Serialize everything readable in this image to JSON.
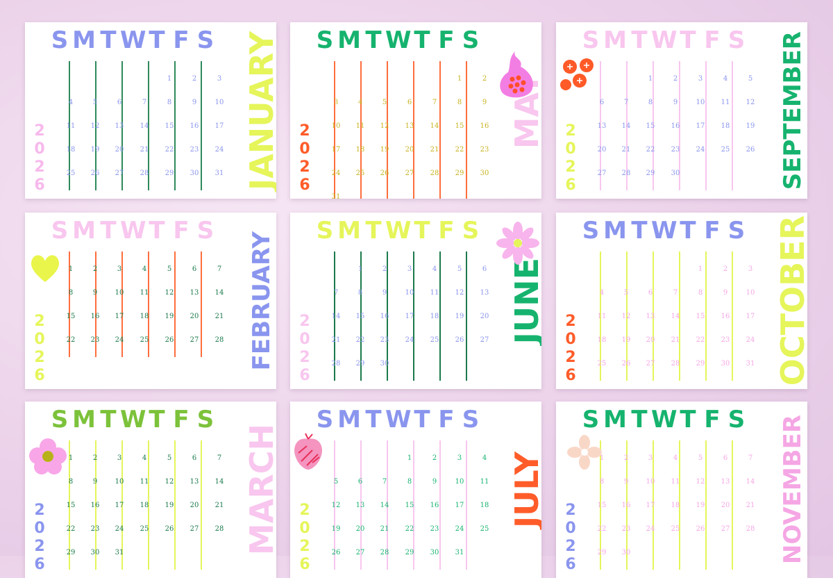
{
  "weekday_header": [
    "S",
    "M",
    "T",
    "W",
    "T",
    "F",
    "S"
  ],
  "cards": [
    {
      "id": "jan",
      "month": "JANUARY",
      "year": "2026",
      "colors": {
        "days": "#8a95ee",
        "lines": "#2e8a5a",
        "nums": "#8a95ee",
        "month": "#e5f55a",
        "year": "#f7b9ec"
      },
      "start_col": 4,
      "month_size": "large",
      "rows": [
        [
          "",
          "",
          "",
          "",
          "1",
          "2",
          "3"
        ],
        [
          "4",
          "5",
          "6",
          "7",
          "8",
          "9",
          "10"
        ],
        [
          "11",
          "12",
          "13",
          "14",
          "15",
          "16",
          "17"
        ],
        [
          "18",
          "19",
          "20",
          "21",
          "22",
          "23",
          "24"
        ],
        [
          "25",
          "26",
          "27",
          "28",
          "29",
          "30",
          "31"
        ]
      ]
    },
    {
      "id": "may",
      "month": "MAY",
      "year": "2026",
      "colors": {
        "days": "#16b36e",
        "lines": "#ff6e3d",
        "nums": "#c8b21e",
        "month": "#f8c6ee",
        "year": "#ff5c2a"
      },
      "rows": [
        [
          "",
          "",
          "",
          "",
          "",
          "1",
          "2"
        ],
        [
          "3",
          "4",
          "5",
          "6",
          "7",
          "8",
          "9"
        ],
        [
          "10",
          "11",
          "12",
          "13",
          "14",
          "15",
          "16"
        ],
        [
          "17",
          "18",
          "19",
          "20",
          "21",
          "22",
          "23"
        ],
        [
          "24",
          "25",
          "26",
          "27",
          "28",
          "29",
          "30"
        ],
        [
          "31",
          "",
          "",
          "",
          "",
          "",
          ""
        ]
      ]
    },
    {
      "id": "sep",
      "month": "SEPTEMBER",
      "year": "2026",
      "colors": {
        "days": "#f8c6ee",
        "lines": "#f8c6ee",
        "nums": "#8a95ee",
        "month": "#16b36e",
        "year": "#e5f55a"
      },
      "rows": [
        [
          "",
          "",
          "1",
          "2",
          "3",
          "4",
          "5"
        ],
        [
          "6",
          "7",
          "8",
          "9",
          "10",
          "11",
          "12"
        ],
        [
          "13",
          "14",
          "15",
          "16",
          "17",
          "18",
          "19"
        ],
        [
          "20",
          "21",
          "22",
          "23",
          "24",
          "25",
          "26"
        ],
        [
          "27",
          "28",
          "29",
          "30",
          "",
          "",
          ""
        ]
      ]
    },
    {
      "id": "feb",
      "month": "FEBRUARY",
      "year": "2026",
      "colors": {
        "days": "#f8c6ee",
        "lines": "#ff6e3d",
        "nums": "#1a7a4a",
        "month": "#8a95ee",
        "year": "#e5f55a"
      },
      "rows": [
        [
          "1",
          "2",
          "3",
          "4",
          "5",
          "6",
          "7"
        ],
        [
          "8",
          "9",
          "10",
          "11",
          "12",
          "13",
          "14"
        ],
        [
          "15",
          "16",
          "17",
          "18",
          "19",
          "20",
          "21"
        ],
        [
          "22",
          "23",
          "24",
          "25",
          "26",
          "27",
          "28"
        ]
      ]
    },
    {
      "id": "jun",
      "month": "JUNE",
      "year": "2026",
      "colors": {
        "days": "#e5f55a",
        "lines": "#1a7a4a",
        "nums": "#8a95ee",
        "month": "#16b36e",
        "year": "#f8c6ee"
      },
      "rows": [
        [
          "",
          "1",
          "2",
          "3",
          "4",
          "5",
          "6"
        ],
        [
          "7",
          "8",
          "9",
          "10",
          "11",
          "12",
          "13"
        ],
        [
          "14",
          "15",
          "16",
          "17",
          "18",
          "19",
          "20"
        ],
        [
          "21",
          "22",
          "23",
          "24",
          "25",
          "26",
          "27"
        ],
        [
          "28",
          "29",
          "30",
          "",
          "",
          "",
          ""
        ]
      ]
    },
    {
      "id": "oct",
      "month": "OCTOBER",
      "year": "2026",
      "colors": {
        "days": "#8a95ee",
        "lines": "#e5f55a",
        "nums": "#f5a6e4",
        "month": "#e5f55a",
        "year": "#ff5c2a"
      },
      "rows": [
        [
          "",
          "",
          "",
          "",
          "1",
          "2",
          "3"
        ],
        [
          "4",
          "5",
          "6",
          "7",
          "8",
          "9",
          "10"
        ],
        [
          "11",
          "12",
          "13",
          "14",
          "15",
          "16",
          "17"
        ],
        [
          "18",
          "19",
          "20",
          "21",
          "22",
          "23",
          "24"
        ],
        [
          "25",
          "26",
          "27",
          "28",
          "29",
          "30",
          "31"
        ]
      ]
    },
    {
      "id": "mar",
      "month": "MARCH",
      "year": "2026",
      "colors": {
        "days": "#7cc23a",
        "lines": "#e5f55a",
        "nums": "#1a7a4a",
        "month": "#f8c6ee",
        "year": "#8a95ee"
      },
      "rows": [
        [
          "1",
          "2",
          "3",
          "4",
          "5",
          "6",
          "7"
        ],
        [
          "8",
          "9",
          "10",
          "11",
          "12",
          "13",
          "14"
        ],
        [
          "15",
          "16",
          "17",
          "18",
          "19",
          "20",
          "21"
        ],
        [
          "22",
          "23",
          "24",
          "25",
          "26",
          "27",
          "28"
        ],
        [
          "29",
          "30",
          "31",
          "",
          "",
          "",
          ""
        ]
      ]
    },
    {
      "id": "jul",
      "month": "JULY",
      "year": "2026",
      "colors": {
        "days": "#8a95ee",
        "lines": "#f8c6ee",
        "nums": "#16b36e",
        "month": "#ff5c2a",
        "year": "#e5f55a"
      },
      "rows": [
        [
          "",
          "",
          "",
          "1",
          "2",
          "3",
          "4"
        ],
        [
          "5",
          "6",
          "7",
          "8",
          "9",
          "10",
          "11"
        ],
        [
          "12",
          "13",
          "14",
          "15",
          "16",
          "17",
          "18"
        ],
        [
          "19",
          "20",
          "21",
          "22",
          "23",
          "24",
          "25"
        ],
        [
          "26",
          "27",
          "28",
          "29",
          "30",
          "31",
          ""
        ]
      ]
    },
    {
      "id": "nov",
      "month": "NOVEMBER",
      "year": "2026",
      "colors": {
        "days": "#16b36e",
        "lines": "#e5f55a",
        "nums": "#f5a6e4",
        "month": "#f5a6e4",
        "year": "#8a95ee"
      },
      "rows": [
        [
          "1",
          "2",
          "3",
          "4",
          "5",
          "6",
          "7"
        ],
        [
          "8",
          "9",
          "10",
          "11",
          "12",
          "13",
          "14"
        ],
        [
          "15",
          "16",
          "17",
          "18",
          "19",
          "20",
          "21"
        ],
        [
          "22",
          "23",
          "24",
          "25",
          "26",
          "27",
          "28"
        ],
        [
          "29",
          "30",
          "",
          "",
          "",
          "",
          ""
        ]
      ]
    }
  ]
}
